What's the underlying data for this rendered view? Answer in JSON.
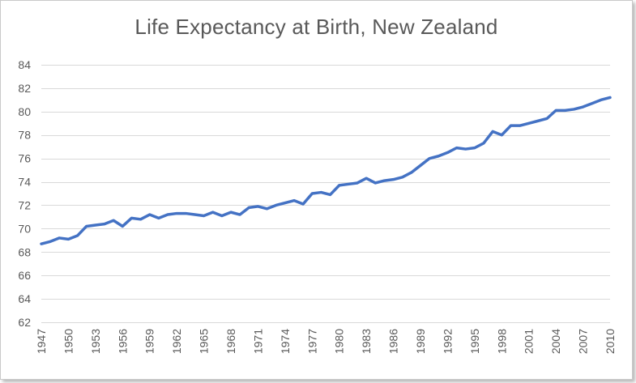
{
  "chart_data": {
    "type": "line",
    "title": "Life Expectancy at Birth, New Zealand",
    "xlabel": "",
    "ylabel": "",
    "ylim": [
      62,
      84
    ],
    "y_ticks": [
      62,
      64,
      66,
      68,
      70,
      72,
      74,
      76,
      78,
      80,
      82,
      84
    ],
    "x_tick_labels": [
      "1947",
      "1950",
      "1953",
      "1956",
      "1959",
      "1962",
      "1965",
      "1968",
      "1971",
      "1974",
      "1977",
      "1980",
      "1983",
      "1986",
      "1989",
      "1992",
      "1995",
      "1998",
      "2001",
      "2004",
      "2007",
      "2010"
    ],
    "grid": "horizontal",
    "legend": "none",
    "series_color": "#4472c4",
    "x": [
      1947,
      1948,
      1949,
      1950,
      1951,
      1952,
      1953,
      1954,
      1955,
      1956,
      1957,
      1958,
      1959,
      1960,
      1961,
      1962,
      1963,
      1964,
      1965,
      1966,
      1967,
      1968,
      1969,
      1970,
      1971,
      1972,
      1973,
      1974,
      1975,
      1976,
      1977,
      1978,
      1979,
      1980,
      1981,
      1982,
      1983,
      1984,
      1985,
      1986,
      1987,
      1988,
      1989,
      1990,
      1991,
      1992,
      1993,
      1994,
      1995,
      1996,
      1997,
      1998,
      1999,
      2000,
      2001,
      2002,
      2003,
      2004,
      2005,
      2006,
      2007,
      2008,
      2009,
      2010
    ],
    "values": [
      68.7,
      68.9,
      69.2,
      69.1,
      69.4,
      70.2,
      70.3,
      70.4,
      70.7,
      70.2,
      70.9,
      70.8,
      71.2,
      70.9,
      71.2,
      71.3,
      71.3,
      71.2,
      71.1,
      71.4,
      71.1,
      71.4,
      71.2,
      71.8,
      71.9,
      71.7,
      72.0,
      72.2,
      72.4,
      72.1,
      73.0,
      73.1,
      72.9,
      73.7,
      73.8,
      73.9,
      74.3,
      73.9,
      74.1,
      74.2,
      74.4,
      74.8,
      75.4,
      76.0,
      76.2,
      76.5,
      76.9,
      76.8,
      76.9,
      77.3,
      78.3,
      78.0,
      78.8,
      78.8,
      79.0,
      79.2,
      79.4,
      80.1,
      80.1,
      80.2,
      80.4,
      80.7,
      81.0,
      81.2
    ]
  }
}
